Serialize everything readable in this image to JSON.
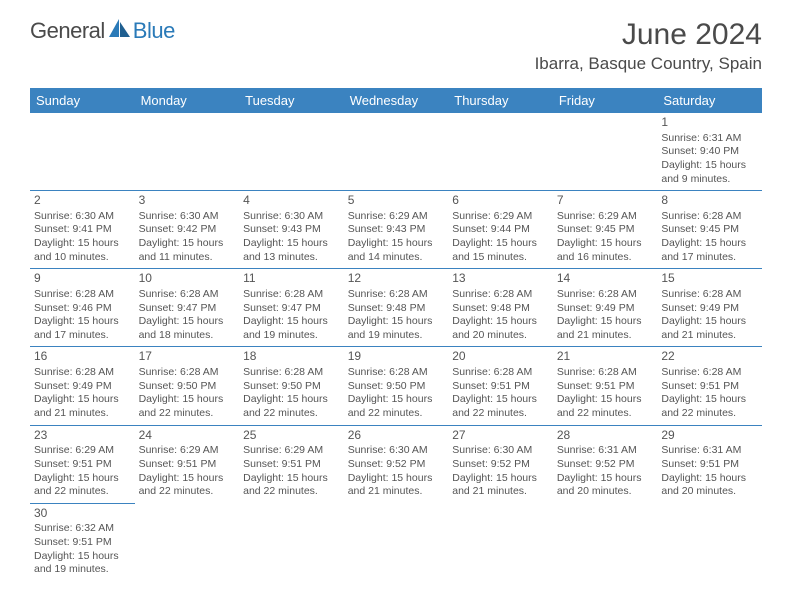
{
  "logo": {
    "part1": "General",
    "part2": "Blue"
  },
  "title": "June 2024",
  "location": "Ibarra, Basque Country, Spain",
  "colors": {
    "header_bg": "#3b83c0",
    "header_text": "#ffffff",
    "body_text": "#555555",
    "title_text": "#4a4a4a",
    "logo_blue": "#2a7ab8",
    "border": "#3b83c0"
  },
  "weekdays": [
    "Sunday",
    "Monday",
    "Tuesday",
    "Wednesday",
    "Thursday",
    "Friday",
    "Saturday"
  ],
  "weeks": [
    [
      null,
      null,
      null,
      null,
      null,
      null,
      {
        "n": "1",
        "sr": "Sunrise: 6:31 AM",
        "ss": "Sunset: 9:40 PM",
        "d1": "Daylight: 15 hours",
        "d2": "and 9 minutes."
      }
    ],
    [
      {
        "n": "2",
        "sr": "Sunrise: 6:30 AM",
        "ss": "Sunset: 9:41 PM",
        "d1": "Daylight: 15 hours",
        "d2": "and 10 minutes."
      },
      {
        "n": "3",
        "sr": "Sunrise: 6:30 AM",
        "ss": "Sunset: 9:42 PM",
        "d1": "Daylight: 15 hours",
        "d2": "and 11 minutes."
      },
      {
        "n": "4",
        "sr": "Sunrise: 6:30 AM",
        "ss": "Sunset: 9:43 PM",
        "d1": "Daylight: 15 hours",
        "d2": "and 13 minutes."
      },
      {
        "n": "5",
        "sr": "Sunrise: 6:29 AM",
        "ss": "Sunset: 9:43 PM",
        "d1": "Daylight: 15 hours",
        "d2": "and 14 minutes."
      },
      {
        "n": "6",
        "sr": "Sunrise: 6:29 AM",
        "ss": "Sunset: 9:44 PM",
        "d1": "Daylight: 15 hours",
        "d2": "and 15 minutes."
      },
      {
        "n": "7",
        "sr": "Sunrise: 6:29 AM",
        "ss": "Sunset: 9:45 PM",
        "d1": "Daylight: 15 hours",
        "d2": "and 16 minutes."
      },
      {
        "n": "8",
        "sr": "Sunrise: 6:28 AM",
        "ss": "Sunset: 9:45 PM",
        "d1": "Daylight: 15 hours",
        "d2": "and 17 minutes."
      }
    ],
    [
      {
        "n": "9",
        "sr": "Sunrise: 6:28 AM",
        "ss": "Sunset: 9:46 PM",
        "d1": "Daylight: 15 hours",
        "d2": "and 17 minutes."
      },
      {
        "n": "10",
        "sr": "Sunrise: 6:28 AM",
        "ss": "Sunset: 9:47 PM",
        "d1": "Daylight: 15 hours",
        "d2": "and 18 minutes."
      },
      {
        "n": "11",
        "sr": "Sunrise: 6:28 AM",
        "ss": "Sunset: 9:47 PM",
        "d1": "Daylight: 15 hours",
        "d2": "and 19 minutes."
      },
      {
        "n": "12",
        "sr": "Sunrise: 6:28 AM",
        "ss": "Sunset: 9:48 PM",
        "d1": "Daylight: 15 hours",
        "d2": "and 19 minutes."
      },
      {
        "n": "13",
        "sr": "Sunrise: 6:28 AM",
        "ss": "Sunset: 9:48 PM",
        "d1": "Daylight: 15 hours",
        "d2": "and 20 minutes."
      },
      {
        "n": "14",
        "sr": "Sunrise: 6:28 AM",
        "ss": "Sunset: 9:49 PM",
        "d1": "Daylight: 15 hours",
        "d2": "and 21 minutes."
      },
      {
        "n": "15",
        "sr": "Sunrise: 6:28 AM",
        "ss": "Sunset: 9:49 PM",
        "d1": "Daylight: 15 hours",
        "d2": "and 21 minutes."
      }
    ],
    [
      {
        "n": "16",
        "sr": "Sunrise: 6:28 AM",
        "ss": "Sunset: 9:49 PM",
        "d1": "Daylight: 15 hours",
        "d2": "and 21 minutes."
      },
      {
        "n": "17",
        "sr": "Sunrise: 6:28 AM",
        "ss": "Sunset: 9:50 PM",
        "d1": "Daylight: 15 hours",
        "d2": "and 22 minutes."
      },
      {
        "n": "18",
        "sr": "Sunrise: 6:28 AM",
        "ss": "Sunset: 9:50 PM",
        "d1": "Daylight: 15 hours",
        "d2": "and 22 minutes."
      },
      {
        "n": "19",
        "sr": "Sunrise: 6:28 AM",
        "ss": "Sunset: 9:50 PM",
        "d1": "Daylight: 15 hours",
        "d2": "and 22 minutes."
      },
      {
        "n": "20",
        "sr": "Sunrise: 6:28 AM",
        "ss": "Sunset: 9:51 PM",
        "d1": "Daylight: 15 hours",
        "d2": "and 22 minutes."
      },
      {
        "n": "21",
        "sr": "Sunrise: 6:28 AM",
        "ss": "Sunset: 9:51 PM",
        "d1": "Daylight: 15 hours",
        "d2": "and 22 minutes."
      },
      {
        "n": "22",
        "sr": "Sunrise: 6:28 AM",
        "ss": "Sunset: 9:51 PM",
        "d1": "Daylight: 15 hours",
        "d2": "and 22 minutes."
      }
    ],
    [
      {
        "n": "23",
        "sr": "Sunrise: 6:29 AM",
        "ss": "Sunset: 9:51 PM",
        "d1": "Daylight: 15 hours",
        "d2": "and 22 minutes."
      },
      {
        "n": "24",
        "sr": "Sunrise: 6:29 AM",
        "ss": "Sunset: 9:51 PM",
        "d1": "Daylight: 15 hours",
        "d2": "and 22 minutes."
      },
      {
        "n": "25",
        "sr": "Sunrise: 6:29 AM",
        "ss": "Sunset: 9:51 PM",
        "d1": "Daylight: 15 hours",
        "d2": "and 22 minutes."
      },
      {
        "n": "26",
        "sr": "Sunrise: 6:30 AM",
        "ss": "Sunset: 9:52 PM",
        "d1": "Daylight: 15 hours",
        "d2": "and 21 minutes."
      },
      {
        "n": "27",
        "sr": "Sunrise: 6:30 AM",
        "ss": "Sunset: 9:52 PM",
        "d1": "Daylight: 15 hours",
        "d2": "and 21 minutes."
      },
      {
        "n": "28",
        "sr": "Sunrise: 6:31 AM",
        "ss": "Sunset: 9:52 PM",
        "d1": "Daylight: 15 hours",
        "d2": "and 20 minutes."
      },
      {
        "n": "29",
        "sr": "Sunrise: 6:31 AM",
        "ss": "Sunset: 9:51 PM",
        "d1": "Daylight: 15 hours",
        "d2": "and 20 minutes."
      }
    ],
    [
      {
        "n": "30",
        "sr": "Sunrise: 6:32 AM",
        "ss": "Sunset: 9:51 PM",
        "d1": "Daylight: 15 hours",
        "d2": "and 19 minutes."
      },
      null,
      null,
      null,
      null,
      null,
      null
    ]
  ]
}
